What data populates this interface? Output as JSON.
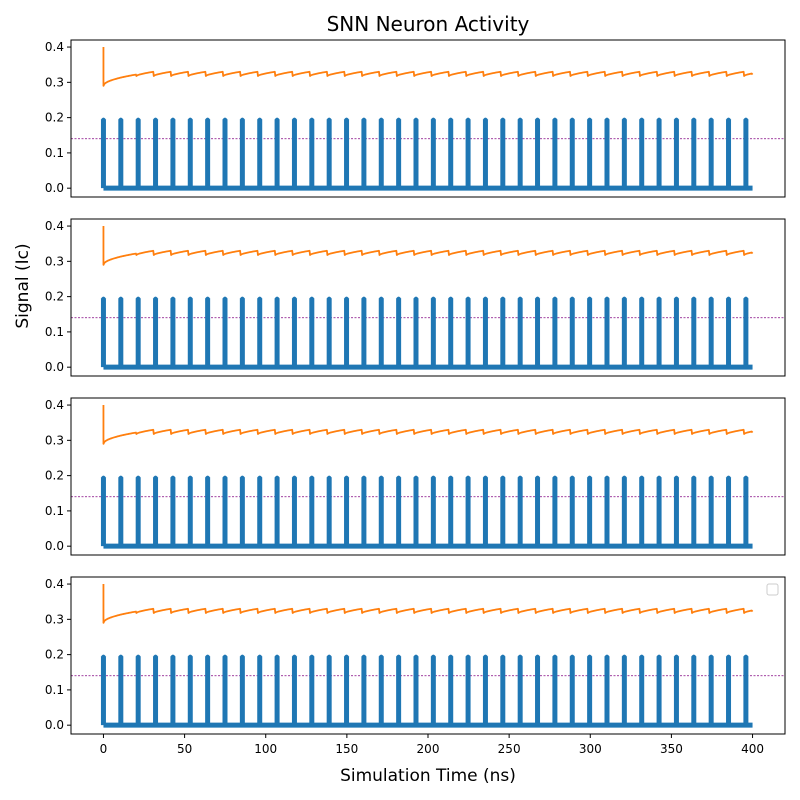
{
  "chart_data": {
    "type": "line",
    "title": "SNN Neuron Activity",
    "xlabel": "Simulation Time (ns)",
    "ylabel": "Signal (Ic)",
    "xlim": [
      -20,
      420
    ],
    "ylim": [
      -0.025,
      0.42
    ],
    "x_ticks": [
      0,
      50,
      100,
      150,
      200,
      250,
      300,
      350,
      400
    ],
    "y_ticks": [
      0.0,
      0.1,
      0.2,
      0.3,
      0.4
    ],
    "grid": false,
    "colors": {
      "spikes": "#1f77b4",
      "membrane": "#ff7f0e",
      "threshold": "#800080"
    },
    "threshold_value": 0.14,
    "spike_height": 0.2,
    "spike_times": [
      0,
      10.7,
      21.4,
      32.1,
      42.8,
      53.5,
      64.2,
      74.9,
      85.6,
      96.3,
      107,
      117.7,
      128.4,
      139.1,
      149.8,
      160.5,
      171.2,
      181.9,
      192.6,
      203.3,
      214,
      224.7,
      235.4,
      246.1,
      256.8,
      267.5,
      278.2,
      288.9,
      299.6,
      310.3,
      321,
      331.7,
      342.4,
      353.1,
      363.8,
      374.5,
      385.2,
      395.9
    ],
    "spike_end_time": 400,
    "membrane": {
      "t_start": 0,
      "t_end": 400,
      "peak": 0.4,
      "initial": 0.29,
      "upper": 0.33,
      "lower": 0.318,
      "period": 10.7
    },
    "panel_count": 4,
    "legend_panel": 4,
    "legend_placement": "top-right"
  }
}
